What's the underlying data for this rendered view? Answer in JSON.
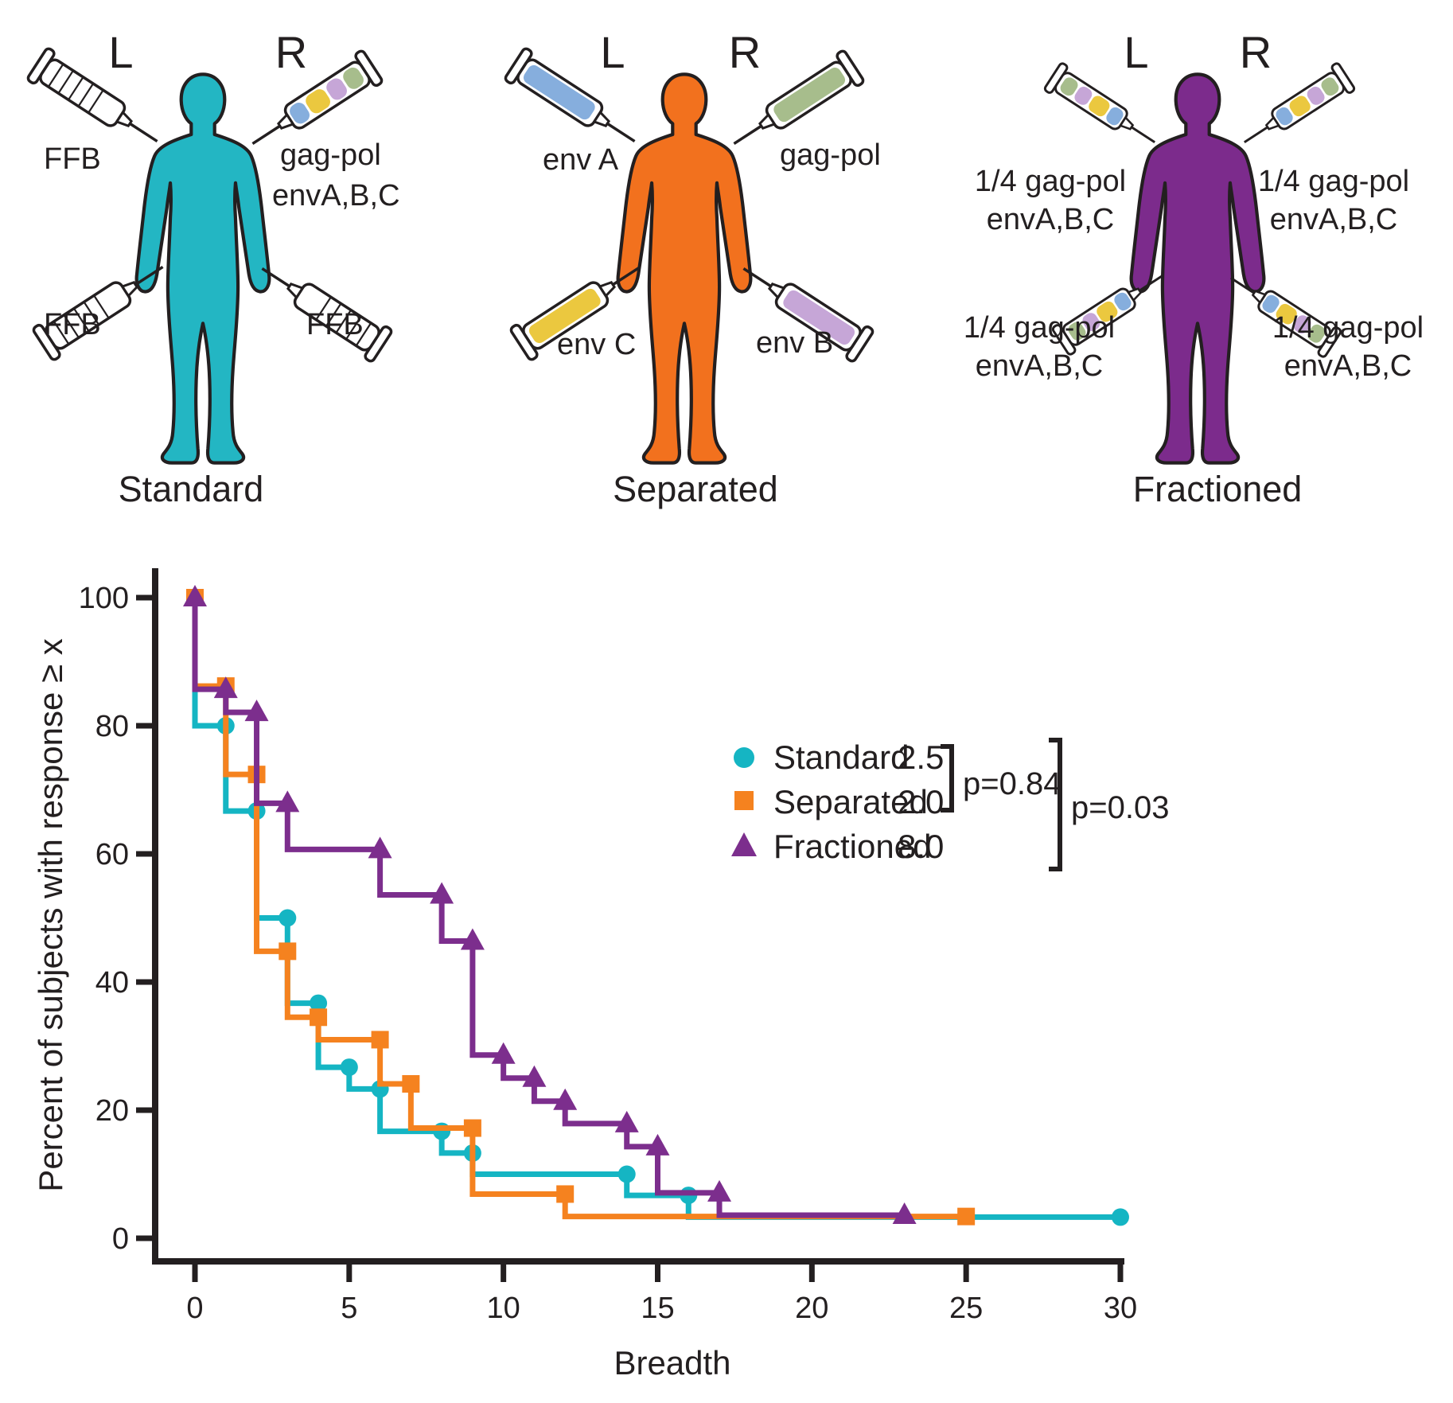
{
  "colors": {
    "ink": "#231f20",
    "standard": "#15b5c3",
    "separated": "#f5821f",
    "fractioned": "#7c2e8d",
    "syringe_blue": "#86aedd",
    "syringe_yellow": "#ebc83f",
    "syringe_lavender": "#c6a6d7",
    "syringe_green": "#a7bd8c",
    "syringe_white": "#ffffff"
  },
  "panels": [
    {
      "caption": "Standard",
      "left_letter": "L",
      "right_letter": "R",
      "body_color": "#23b6c3",
      "labels": {
        "upper_left": "FFB",
        "upper_right_line1": "gag-pol",
        "upper_right_line2": "envA,B,C",
        "lower_left": "FFB",
        "lower_right": "FFB"
      }
    },
    {
      "caption": "Separated",
      "left_letter": "L",
      "right_letter": "R",
      "body_color": "#f2711e",
      "labels": {
        "upper_left": "env A",
        "upper_right": "gag-pol",
        "lower_left": "env C",
        "lower_right": "env B"
      }
    },
    {
      "caption": "Fractioned",
      "left_letter": "L",
      "right_letter": "R",
      "body_color": "#7c2b8c",
      "labels": {
        "upper_left_line1": "1/4 gag-pol",
        "upper_left_line2": "envA,B,C",
        "upper_right_line1": "1/4 gag-pol",
        "upper_right_line2": "envA,B,C",
        "lower_left_line1": "1/4 gag-pol",
        "lower_left_line2": "envA,B,C",
        "lower_right_line1": "1/4 gag-pol",
        "lower_right_line2": "envA,B,C"
      }
    }
  ],
  "chart_data": {
    "type": "line",
    "subtype": "staircase-reverse-cdf",
    "title": "",
    "xlabel": "Breadth",
    "ylabel": "Percent of subjects with response ≥ x",
    "xlim": [
      0,
      30
    ],
    "ylim": [
      0,
      100
    ],
    "grid": "off",
    "x_ticks": [
      0,
      5,
      10,
      15,
      20,
      25,
      30
    ],
    "y_ticks": [
      0,
      20,
      40,
      60,
      80,
      100
    ],
    "series": [
      {
        "name": "Standard",
        "color": "#15b5c3",
        "marker": "circle",
        "median": "2.5",
        "points": [
          [
            0,
            100
          ],
          [
            1,
            80
          ],
          [
            2,
            66.7
          ],
          [
            3,
            50
          ],
          [
            4,
            36.7
          ],
          [
            5,
            26.7
          ],
          [
            6,
            23.3
          ],
          [
            8,
            16.7
          ],
          [
            9,
            13.3
          ],
          [
            14,
            10
          ],
          [
            16,
            6.7
          ],
          [
            30,
            3.3
          ]
        ]
      },
      {
        "name": "Separated",
        "color": "#f5821f",
        "marker": "square",
        "median": "2.0",
        "points": [
          [
            0,
            100
          ],
          [
            1,
            86.2
          ],
          [
            2,
            72.4
          ],
          [
            3,
            44.8
          ],
          [
            4,
            34.5
          ],
          [
            6,
            31
          ],
          [
            7,
            24.1
          ],
          [
            9,
            17.2
          ],
          [
            12,
            6.9
          ],
          [
            25,
            3.4
          ]
        ]
      },
      {
        "name": "Fractioned",
        "color": "#7c2e8d",
        "marker": "triangle",
        "median": "8.0",
        "points": [
          [
            0,
            100
          ],
          [
            1,
            85.7
          ],
          [
            2,
            82.1
          ],
          [
            3,
            67.9
          ],
          [
            6,
            60.7
          ],
          [
            8,
            53.6
          ],
          [
            9,
            46.4
          ],
          [
            10,
            28.6
          ],
          [
            11,
            25
          ],
          [
            12,
            21.4
          ],
          [
            14,
            17.9
          ],
          [
            15,
            14.3
          ],
          [
            17,
            7.1
          ],
          [
            23,
            3.6
          ]
        ]
      }
    ],
    "legend": {
      "position": "upper-right",
      "entries": [
        {
          "label": "Standard",
          "value": "2.5"
        },
        {
          "label": "Separated",
          "value": "2.0"
        },
        {
          "label": "Fractioned",
          "value": "8.0"
        }
      ],
      "comparisons": [
        {
          "label": "p=0.84",
          "between": [
            "Standard",
            "Separated"
          ]
        },
        {
          "label": "p=0.03",
          "between": [
            "Standard+Separated",
            "Fractioned"
          ]
        }
      ]
    }
  }
}
